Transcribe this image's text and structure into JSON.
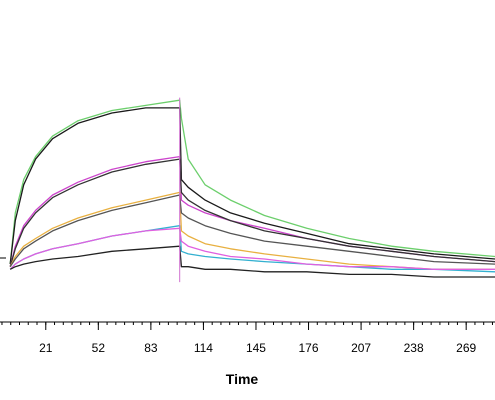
{
  "chart_data": {
    "type": "line",
    "title": "",
    "xlabel": "Time",
    "ylabel": "",
    "xlim": [
      -6,
      286
    ],
    "ylim": [
      -0.09,
      0.73
    ],
    "grid": false,
    "legend": "none",
    "x_tick_values": [
      21,
      52,
      83,
      114,
      145,
      176,
      207,
      238,
      269
    ],
    "x_tick_labels": [
      "21",
      "52",
      "83",
      "114",
      "145",
      "176",
      "207",
      "238",
      "269"
    ],
    "association_phase": [
      0,
      100
    ],
    "dissociation_phase": [
      100,
      286
    ],
    "series": [
      {
        "color": "#6ccf6c",
        "x": [
          0,
          3,
          8,
          15,
          25,
          40,
          60,
          80,
          100,
          101,
          105,
          115,
          130,
          150,
          175,
          200,
          225,
          250,
          286
        ],
        "y": [
          0.05,
          0.25,
          0.38,
          0.47,
          0.55,
          0.61,
          0.65,
          0.67,
          0.69,
          0.62,
          0.46,
          0.36,
          0.3,
          0.24,
          0.19,
          0.15,
          0.12,
          0.1,
          0.08
        ]
      },
      {
        "color": "#1a1a1a",
        "x": [
          0,
          3,
          8,
          15,
          25,
          40,
          60,
          80,
          100,
          101,
          105,
          115,
          130,
          150,
          175,
          200,
          225,
          250,
          286
        ],
        "y": [
          0.05,
          0.22,
          0.36,
          0.46,
          0.54,
          0.6,
          0.64,
          0.66,
          0.66,
          0.38,
          0.35,
          0.3,
          0.25,
          0.21,
          0.17,
          0.13,
          0.11,
          0.09,
          0.07
        ]
      },
      {
        "color": "#cc44cc",
        "x": [
          0,
          3,
          8,
          15,
          25,
          40,
          60,
          80,
          100,
          101,
          105,
          115,
          130,
          150,
          175,
          200,
          225,
          250,
          286
        ],
        "y": [
          0.04,
          0.12,
          0.2,
          0.26,
          0.32,
          0.37,
          0.42,
          0.45,
          0.47,
          0.3,
          0.28,
          0.25,
          0.22,
          0.19,
          0.15,
          0.12,
          0.1,
          0.08,
          0.06
        ]
      },
      {
        "color": "#333333",
        "x": [
          0,
          3,
          8,
          15,
          25,
          40,
          60,
          80,
          100,
          101,
          105,
          115,
          130,
          150,
          175,
          200,
          225,
          250,
          286
        ],
        "y": [
          0.04,
          0.11,
          0.19,
          0.25,
          0.31,
          0.36,
          0.41,
          0.44,
          0.46,
          0.33,
          0.3,
          0.26,
          0.22,
          0.18,
          0.15,
          0.12,
          0.1,
          0.08,
          0.06
        ]
      },
      {
        "color": "#e8b040",
        "x": [
          0,
          3,
          8,
          15,
          25,
          40,
          60,
          80,
          100,
          101,
          105,
          115,
          130,
          150,
          175,
          200,
          225,
          250,
          286
        ],
        "y": [
          0.04,
          0.08,
          0.12,
          0.15,
          0.19,
          0.23,
          0.27,
          0.3,
          0.33,
          0.18,
          0.16,
          0.13,
          0.11,
          0.09,
          0.07,
          0.05,
          0.04,
          0.03,
          0.03
        ]
      },
      {
        "color": "#555555",
        "x": [
          0,
          3,
          8,
          15,
          25,
          40,
          60,
          80,
          100,
          101,
          105,
          115,
          130,
          150,
          175,
          200,
          225,
          250,
          286
        ],
        "y": [
          0.04,
          0.07,
          0.11,
          0.14,
          0.18,
          0.22,
          0.26,
          0.29,
          0.32,
          0.25,
          0.23,
          0.2,
          0.17,
          0.14,
          0.12,
          0.1,
          0.08,
          0.06,
          0.05
        ]
      },
      {
        "color": "#33b0d0",
        "x": [
          0,
          3,
          8,
          15,
          25,
          40,
          60,
          80,
          100,
          101,
          105,
          115,
          130,
          150,
          175,
          200,
          225,
          250,
          286
        ],
        "y": [
          0.03,
          0.05,
          0.07,
          0.09,
          0.11,
          0.13,
          0.16,
          0.18,
          0.2,
          0.1,
          0.09,
          0.08,
          0.07,
          0.06,
          0.05,
          0.04,
          0.03,
          0.03,
          0.02
        ]
      },
      {
        "color": "#e060e0",
        "x": [
          0,
          3,
          8,
          15,
          25,
          40,
          60,
          80,
          100,
          101,
          105,
          115,
          130,
          150,
          175,
          200,
          225,
          250,
          286
        ],
        "y": [
          0.03,
          0.05,
          0.07,
          0.09,
          0.11,
          0.13,
          0.16,
          0.18,
          0.19,
          0.14,
          0.12,
          0.1,
          0.08,
          0.07,
          0.05,
          0.04,
          0.04,
          0.03,
          0.03
        ]
      },
      {
        "color": "#222222",
        "x": [
          0,
          3,
          8,
          15,
          25,
          40,
          60,
          80,
          100,
          101,
          105,
          115,
          130,
          150,
          175,
          200,
          225,
          250,
          286
        ],
        "y": [
          0.03,
          0.04,
          0.05,
          0.06,
          0.07,
          0.08,
          0.1,
          0.11,
          0.12,
          0.04,
          0.04,
          0.03,
          0.03,
          0.02,
          0.02,
          0.01,
          0.01,
          0.0,
          0.0
        ]
      }
    ]
  }
}
